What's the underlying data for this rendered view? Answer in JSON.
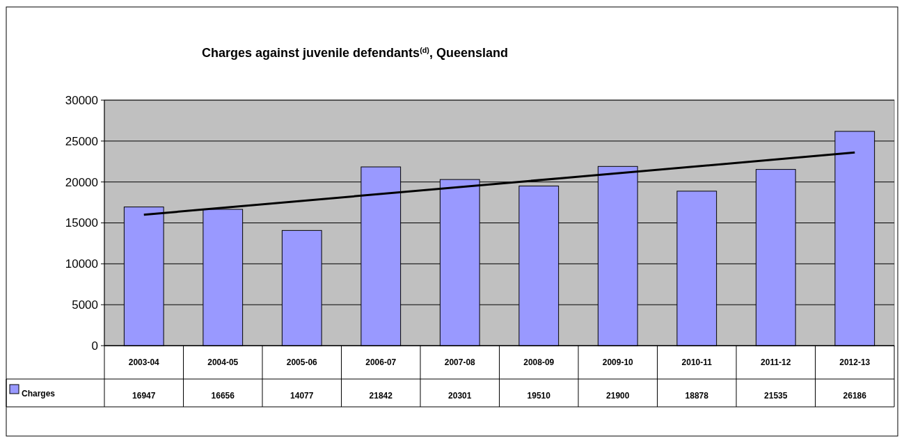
{
  "chart_data": {
    "type": "bar",
    "title": "Charges against juvenile defendants$^{(d)}$, Queensland",
    "categories": [
      "2003-04",
      "2004-05",
      "2005-06",
      "2006-07",
      "2007-08",
      "2008-09",
      "2009-10",
      "2010-11",
      "2011-12",
      "2012-13"
    ],
    "series": [
      {
        "name": "Charges",
        "color": "#9999ff",
        "values": [
          16947,
          16656,
          14077,
          21842,
          20301,
          19510,
          21900,
          18878,
          21535,
          26186
        ],
        "value_labels": [
          "16947",
          "16656",
          "14077",
          "21842",
          "20301",
          "19510",
          "21900",
          "18878",
          "21535",
          "26186"
        ]
      },
      {
        "type": "line",
        "color": "#000000",
        "values": [
          16000,
          null,
          null,
          null,
          null,
          null,
          null,
          null,
          null,
          23600
        ]
      }
    ],
    "ylim": [
      0,
      30000
    ],
    "yticks": [
      0,
      5000,
      10000,
      15000,
      20000,
      25000,
      30000
    ],
    "grid": "y",
    "legend": "bottom",
    "marker": "none",
    "line_style": "solid"
  }
}
